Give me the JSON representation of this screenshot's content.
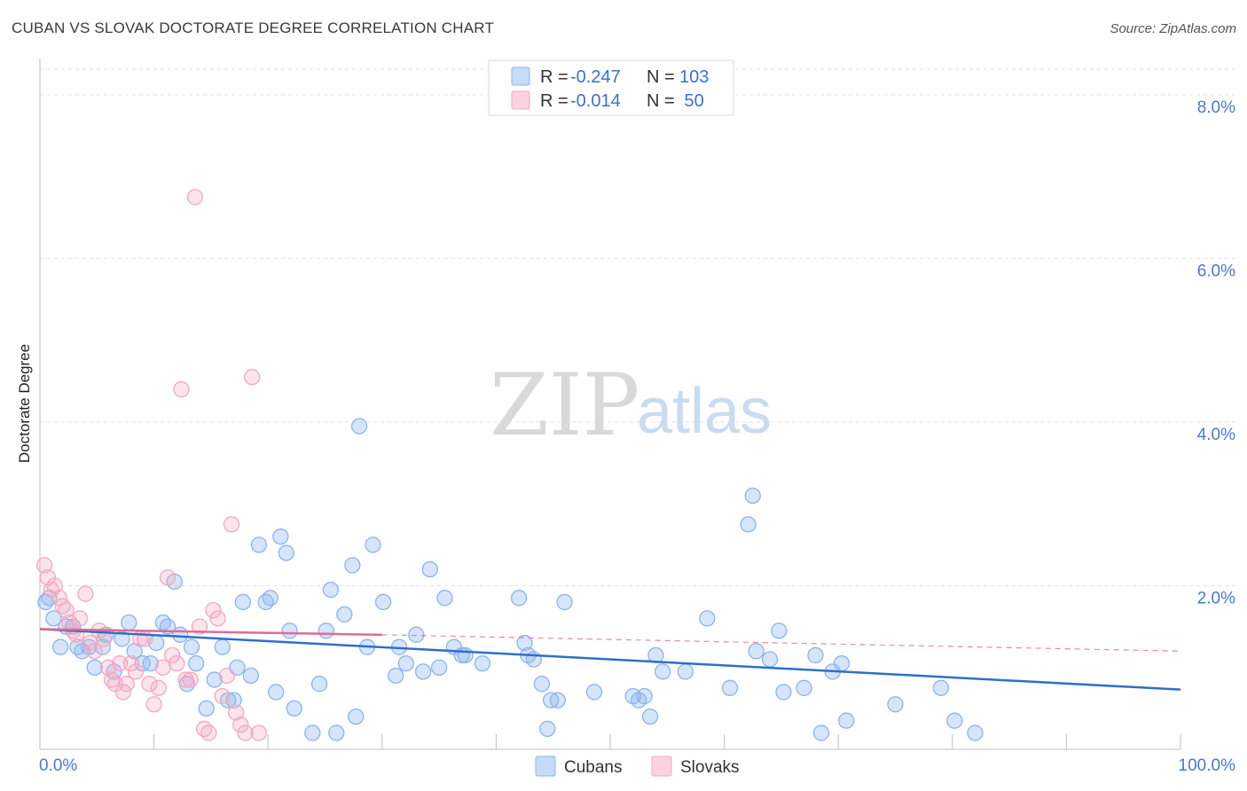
{
  "title": "CUBAN VS SLOVAK DOCTORATE DEGREE CORRELATION CHART",
  "source": "Source: ZipAtlas.com",
  "watermark": {
    "zip": "ZIP",
    "atlas": "atlas"
  },
  "legend_top": {
    "rows": [
      {
        "r_label": "R =",
        "r_value": "-0.247",
        "n_label": "N =",
        "n_value": "103",
        "color": "#8ab4ee"
      },
      {
        "r_label": "R =",
        "r_value": "-0.014",
        "n_label": "N =",
        "n_value": " 50",
        "color": "#f4a7c0"
      }
    ]
  },
  "chart_data": {
    "type": "scatter",
    "title": "CUBAN VS SLOVAK DOCTORATE DEGREE CORRELATION CHART",
    "xlabel": "",
    "ylabel": "Doctorate Degree",
    "xlim": [
      0,
      100
    ],
    "ylim": [
      0,
      8.4
    ],
    "y_ticks": [
      {
        "value": 2,
        "label": "2.0%"
      },
      {
        "value": 4,
        "label": "4.0%"
      },
      {
        "value": 6,
        "label": "6.0%"
      },
      {
        "value": 8,
        "label": "8.0%"
      }
    ],
    "x_tick_labels": [
      {
        "value": 0,
        "label": "0.0%"
      },
      {
        "value": 100,
        "label": "100.0%"
      }
    ],
    "grid": true,
    "legend_placement": "top-center",
    "series": [
      {
        "name": "Cubans",
        "color": "#8ab4ee",
        "line_color": "#2f6fc8",
        "trend": {
          "x0": 0,
          "y0": 1.47,
          "x1": 100,
          "y1": 0.73
        },
        "points": [
          [
            0.5,
            1.8
          ],
          [
            0.8,
            1.85
          ],
          [
            1.2,
            1.6
          ],
          [
            1.8,
            1.25
          ],
          [
            2.3,
            1.5
          ],
          [
            2.9,
            1.5
          ],
          [
            3.3,
            1.25
          ],
          [
            3.7,
            1.2
          ],
          [
            4.3,
            1.25
          ],
          [
            4.8,
            1.0
          ],
          [
            5.5,
            1.25
          ],
          [
            5.8,
            1.4
          ],
          [
            6.5,
            0.95
          ],
          [
            7.2,
            1.35
          ],
          [
            7.8,
            1.55
          ],
          [
            8.3,
            1.2
          ],
          [
            9.0,
            1.05
          ],
          [
            9.7,
            1.05
          ],
          [
            10.2,
            1.3
          ],
          [
            10.8,
            1.55
          ],
          [
            11.2,
            1.5
          ],
          [
            11.8,
            2.05
          ],
          [
            12.3,
            1.4
          ],
          [
            12.9,
            0.8
          ],
          [
            13.3,
            1.25
          ],
          [
            13.7,
            1.05
          ],
          [
            14.6,
            0.5
          ],
          [
            15.3,
            0.85
          ],
          [
            16.0,
            1.25
          ],
          [
            16.5,
            0.6
          ],
          [
            17.0,
            0.6
          ],
          [
            17.3,
            1.0
          ],
          [
            17.8,
            1.8
          ],
          [
            18.5,
            0.9
          ],
          [
            19.2,
            2.5
          ],
          [
            19.8,
            1.8
          ],
          [
            20.2,
            1.85
          ],
          [
            20.7,
            0.7
          ],
          [
            21.1,
            2.6
          ],
          [
            21.6,
            2.4
          ],
          [
            21.9,
            1.45
          ],
          [
            22.3,
            0.5
          ],
          [
            23.9,
            0.2
          ],
          [
            24.5,
            0.8
          ],
          [
            25.1,
            1.45
          ],
          [
            25.5,
            1.95
          ],
          [
            26.0,
            0.2
          ],
          [
            26.7,
            1.65
          ],
          [
            27.4,
            2.25
          ],
          [
            27.7,
            0.4
          ],
          [
            28.0,
            3.95
          ],
          [
            28.7,
            1.25
          ],
          [
            29.2,
            2.5
          ],
          [
            30.1,
            1.8
          ],
          [
            31.2,
            0.9
          ],
          [
            31.5,
            1.25
          ],
          [
            32.1,
            1.05
          ],
          [
            33.0,
            1.4
          ],
          [
            33.6,
            0.95
          ],
          [
            34.2,
            2.2
          ],
          [
            35.0,
            1.0
          ],
          [
            35.5,
            1.85
          ],
          [
            36.3,
            1.25
          ],
          [
            37.0,
            1.15
          ],
          [
            37.3,
            1.15
          ],
          [
            38.8,
            1.05
          ],
          [
            42.0,
            1.85
          ],
          [
            42.5,
            1.3
          ],
          [
            42.8,
            1.15
          ],
          [
            43.3,
            1.1
          ],
          [
            44.0,
            0.8
          ],
          [
            44.5,
            0.25
          ],
          [
            44.8,
            0.6
          ],
          [
            45.4,
            0.6
          ],
          [
            46.0,
            1.8
          ],
          [
            48.6,
            0.7
          ],
          [
            52.0,
            0.65
          ],
          [
            52.5,
            0.6
          ],
          [
            53.0,
            0.65
          ],
          [
            53.5,
            0.4
          ],
          [
            54.0,
            1.15
          ],
          [
            54.6,
            0.95
          ],
          [
            56.6,
            0.95
          ],
          [
            58.5,
            1.6
          ],
          [
            60.5,
            0.75
          ],
          [
            62.1,
            2.75
          ],
          [
            62.5,
            3.1
          ],
          [
            62.8,
            1.2
          ],
          [
            64.0,
            1.1
          ],
          [
            64.8,
            1.45
          ],
          [
            65.2,
            0.7
          ],
          [
            67.0,
            0.75
          ],
          [
            68.0,
            1.15
          ],
          [
            68.5,
            0.2
          ],
          [
            69.5,
            0.95
          ],
          [
            70.3,
            1.05
          ],
          [
            70.7,
            0.35
          ],
          [
            75.0,
            0.55
          ],
          [
            79.0,
            0.75
          ],
          [
            80.2,
            0.35
          ],
          [
            82.0,
            0.2
          ]
        ]
      },
      {
        "name": "Slovaks",
        "color": "#f4a7c0",
        "line_color": "#e06a96",
        "trend": {
          "x0": 0,
          "y0": 1.47,
          "x1": 30,
          "y1": 1.4
        },
        "trend_extension": {
          "x0": 30,
          "y0": 1.4,
          "x1": 100,
          "y1": 1.2
        },
        "points": [
          [
            0.4,
            2.25
          ],
          [
            0.7,
            2.1
          ],
          [
            1.0,
            1.95
          ],
          [
            1.3,
            2.0
          ],
          [
            1.7,
            1.85
          ],
          [
            2.0,
            1.75
          ],
          [
            2.3,
            1.7
          ],
          [
            2.6,
            1.55
          ],
          [
            2.9,
            1.45
          ],
          [
            3.2,
            1.4
          ],
          [
            3.5,
            1.6
          ],
          [
            4.0,
            1.9
          ],
          [
            4.4,
            1.3
          ],
          [
            4.8,
            1.2
          ],
          [
            5.2,
            1.45
          ],
          [
            5.6,
            1.35
          ],
          [
            6.0,
            1.0
          ],
          [
            6.3,
            0.85
          ],
          [
            6.6,
            0.8
          ],
          [
            7.0,
            1.05
          ],
          [
            7.3,
            0.7
          ],
          [
            7.6,
            0.8
          ],
          [
            8.0,
            1.05
          ],
          [
            8.4,
            0.95
          ],
          [
            8.8,
            1.35
          ],
          [
            9.2,
            1.35
          ],
          [
            9.6,
            0.8
          ],
          [
            10.0,
            0.55
          ],
          [
            10.4,
            0.75
          ],
          [
            10.8,
            1.0
          ],
          [
            11.2,
            2.1
          ],
          [
            11.6,
            1.15
          ],
          [
            12.0,
            1.05
          ],
          [
            12.4,
            4.4
          ],
          [
            12.8,
            0.85
          ],
          [
            13.2,
            0.85
          ],
          [
            13.6,
            6.75
          ],
          [
            14.0,
            1.5
          ],
          [
            14.4,
            0.25
          ],
          [
            14.8,
            0.2
          ],
          [
            15.2,
            1.7
          ],
          [
            15.6,
            1.6
          ],
          [
            16.0,
            0.65
          ],
          [
            16.4,
            0.9
          ],
          [
            16.8,
            2.75
          ],
          [
            17.2,
            0.45
          ],
          [
            17.6,
            0.3
          ],
          [
            18.0,
            0.2
          ],
          [
            18.6,
            4.55
          ],
          [
            19.2,
            0.2
          ]
        ]
      }
    ]
  },
  "bottom_legend": [
    {
      "label": "Cubans",
      "color": "#8ab4ee"
    },
    {
      "label": "Slovaks",
      "color": "#f4a7c0"
    }
  ]
}
